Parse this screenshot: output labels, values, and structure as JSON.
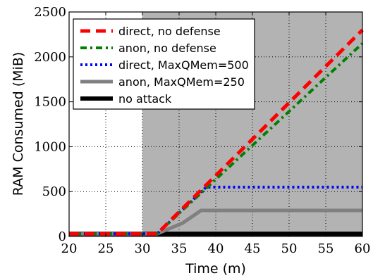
{
  "chart_data": {
    "type": "line",
    "xlabel": "Time (m)",
    "ylabel": "RAM Consumed (MiB)",
    "xlim": [
      20,
      60
    ],
    "ylim": [
      0,
      2500
    ],
    "xticks": [
      "20",
      "25",
      "30",
      "35",
      "40",
      "45",
      "50",
      "55",
      "60"
    ],
    "yticks": [
      "0",
      "500",
      "1000",
      "1500",
      "2000",
      "2500"
    ],
    "grid": true,
    "legend_position": "top-left",
    "attack_region": {
      "x_start": 30,
      "x_end": 60,
      "color": "#b3b3b3"
    },
    "series": [
      {
        "name": "direct, no defense",
        "color": "#ff0000",
        "style": "dashed",
        "x": [
          20,
          32,
          60
        ],
        "y": [
          30,
          30,
          2300
        ]
      },
      {
        "name": "anon, no defense",
        "color": "#008000",
        "style": "dashdot",
        "x": [
          20,
          32,
          60
        ],
        "y": [
          30,
          30,
          2150
        ]
      },
      {
        "name": "direct, MaxQMem=500",
        "color": "#0000ff",
        "style": "dotted",
        "x": [
          20,
          32,
          38.7,
          60
        ],
        "y": [
          30,
          30,
          550,
          550
        ]
      },
      {
        "name": "anon, MaxQMem=250",
        "color": "#808080",
        "style": "solid-thick",
        "x": [
          20,
          32,
          35.5,
          38,
          60
        ],
        "y": [
          30,
          30,
          150,
          290,
          290
        ]
      },
      {
        "name": "no attack",
        "color": "#000000",
        "style": "solid-thick",
        "x": [
          20,
          60
        ],
        "y": [
          30,
          30
        ]
      }
    ]
  }
}
